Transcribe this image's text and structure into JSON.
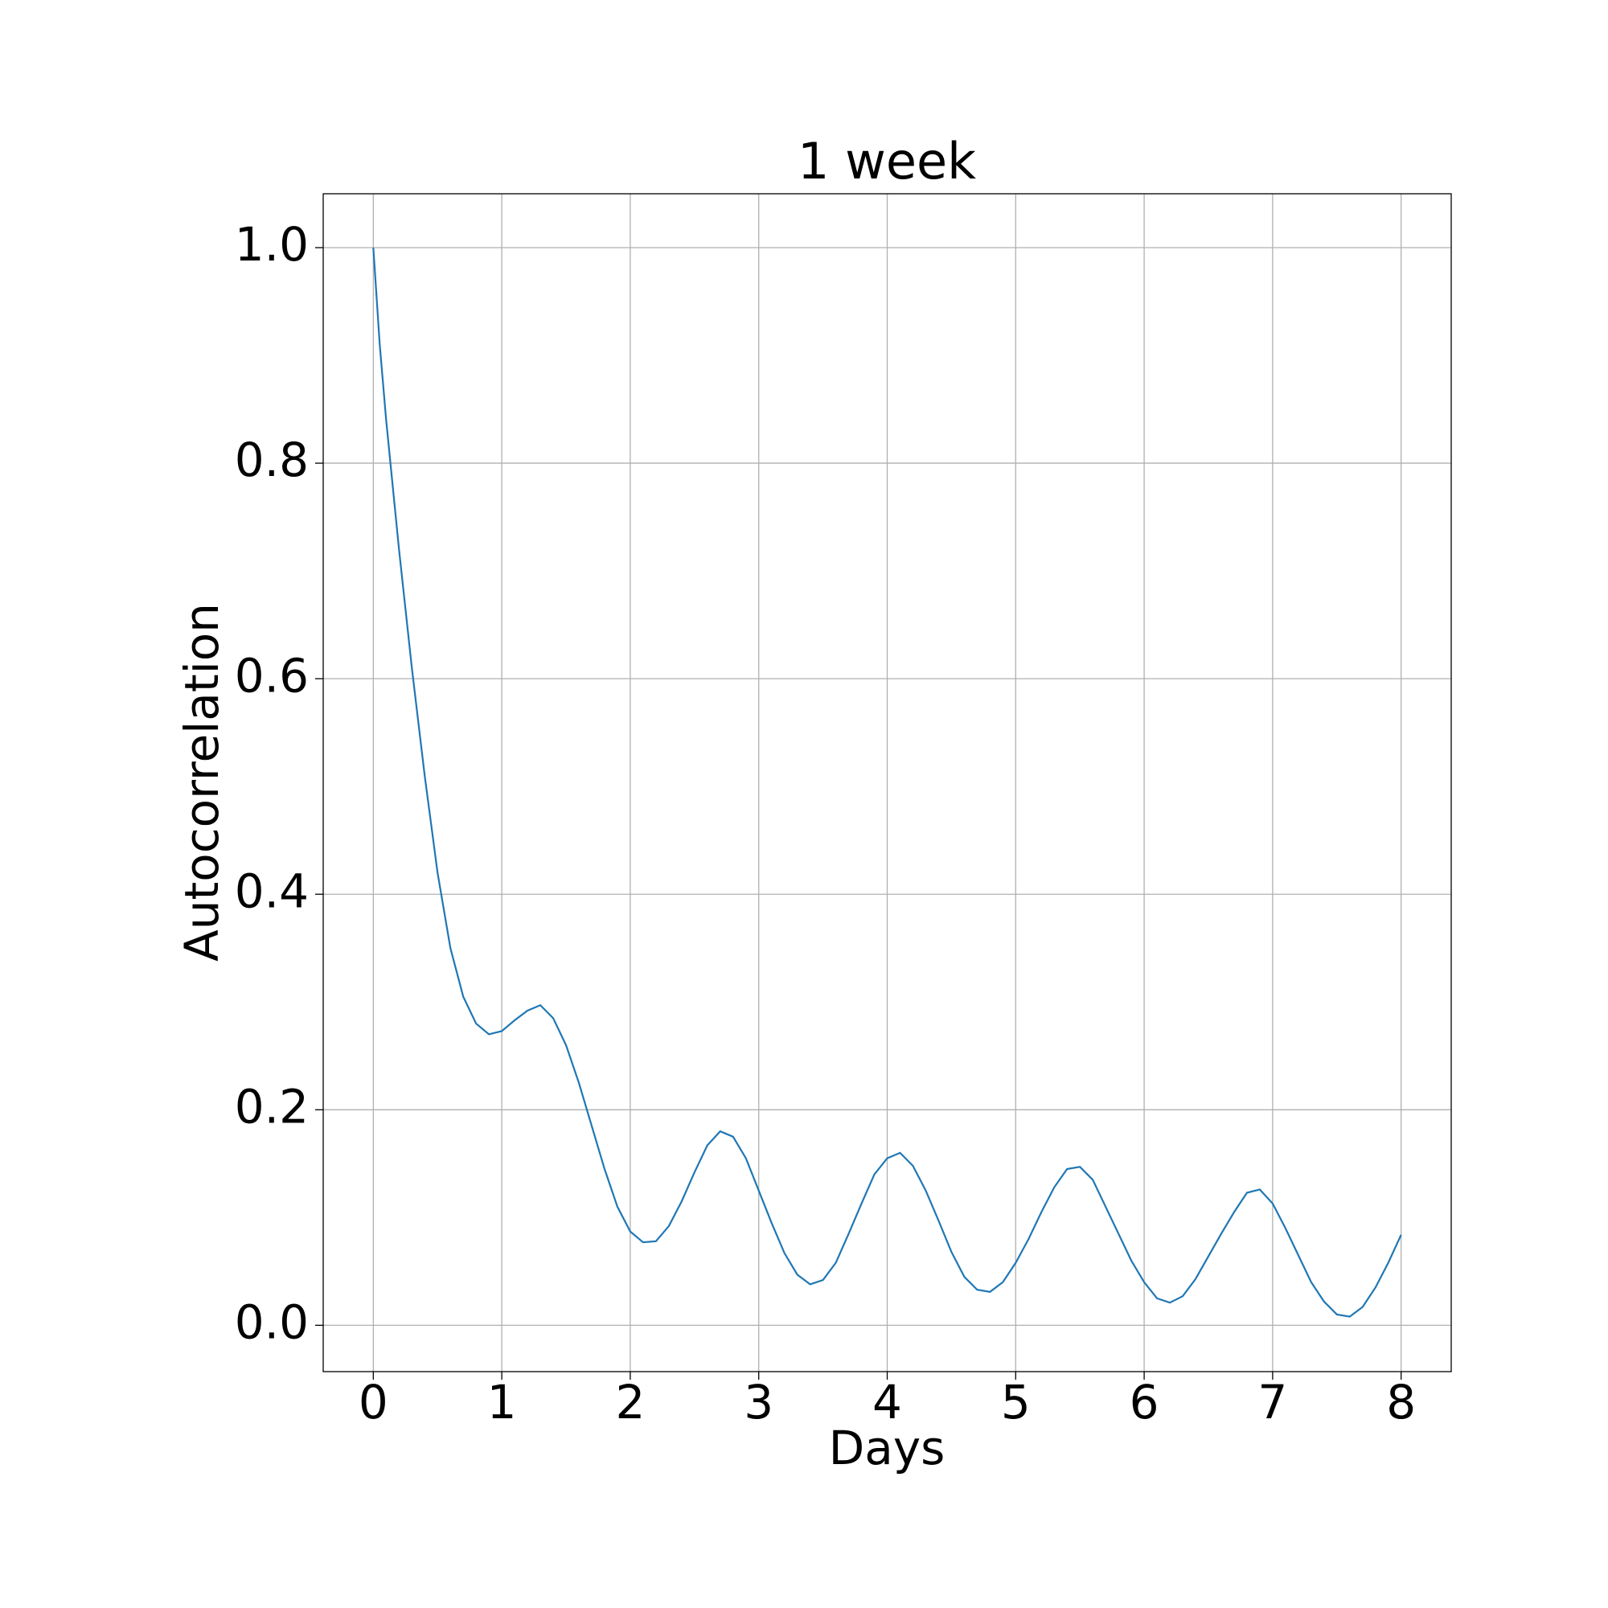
{
  "chart_data": {
    "type": "line",
    "title": "1 week",
    "x_label": "Days",
    "y_label": "Autocorrelation",
    "x": [
      0,
      0.05,
      0.1,
      0.2,
      0.3,
      0.4,
      0.5,
      0.6,
      0.7,
      0.8,
      0.9,
      1.0,
      1.1,
      1.2,
      1.3,
      1.4,
      1.5,
      1.6,
      1.7,
      1.8,
      1.9,
      2.0,
      2.1,
      2.2,
      2.3,
      2.4,
      2.5,
      2.6,
      2.7,
      2.8,
      2.9,
      3.0,
      3.1,
      3.2,
      3.3,
      3.4,
      3.5,
      3.6,
      3.7,
      3.8,
      3.9,
      4.0,
      4.1,
      4.2,
      4.3,
      4.4,
      4.5,
      4.6,
      4.7,
      4.8,
      4.9,
      5.0,
      5.1,
      5.2,
      5.3,
      5.4,
      5.5,
      5.6,
      5.7,
      5.8,
      5.9,
      6.0,
      6.1,
      6.2,
      6.3,
      6.4,
      6.5,
      6.6,
      6.7,
      6.8,
      6.9,
      7.0,
      7.1,
      7.2,
      7.3,
      7.4,
      7.5,
      7.6,
      7.7,
      7.8,
      7.9,
      8.0
    ],
    "series": [
      {
        "color": "#1f77b4",
        "values": [
          1.0,
          0.91,
          0.84,
          0.72,
          0.61,
          0.51,
          0.42,
          0.35,
          0.305,
          0.28,
          0.27,
          0.273,
          0.283,
          0.292,
          0.297,
          0.285,
          0.26,
          0.225,
          0.185,
          0.145,
          0.11,
          0.087,
          0.077,
          0.078,
          0.092,
          0.115,
          0.142,
          0.167,
          0.18,
          0.175,
          0.155,
          0.125,
          0.095,
          0.067,
          0.047,
          0.038,
          0.042,
          0.058,
          0.085,
          0.113,
          0.14,
          0.155,
          0.16,
          0.148,
          0.125,
          0.097,
          0.068,
          0.045,
          0.033,
          0.031,
          0.04,
          0.058,
          0.08,
          0.105,
          0.128,
          0.145,
          0.147,
          0.135,
          0.11,
          0.085,
          0.06,
          0.04,
          0.025,
          0.021,
          0.027,
          0.043,
          0.064,
          0.085,
          0.105,
          0.123,
          0.126,
          0.113,
          0.09,
          0.065,
          0.04,
          0.022,
          0.01,
          0.008,
          0.017,
          0.035,
          0.058,
          0.084
        ]
      }
    ],
    "xlim": [
      -0.39,
      8.39
    ],
    "ylim": [
      -0.043,
      1.05
    ],
    "xticks": [
      0,
      1,
      2,
      3,
      4,
      5,
      6,
      7,
      8
    ],
    "yticks": [
      {
        "value": 0,
        "label": "0.0"
      },
      {
        "value": 0.2,
        "label": "0.2"
      },
      {
        "value": 0.4,
        "label": "0.4"
      },
      {
        "value": 0.6,
        "label": "0.6"
      },
      {
        "value": 0.8,
        "label": "0.8"
      },
      {
        "value": 1.0,
        "label": "1.0"
      }
    ],
    "grid": true
  }
}
